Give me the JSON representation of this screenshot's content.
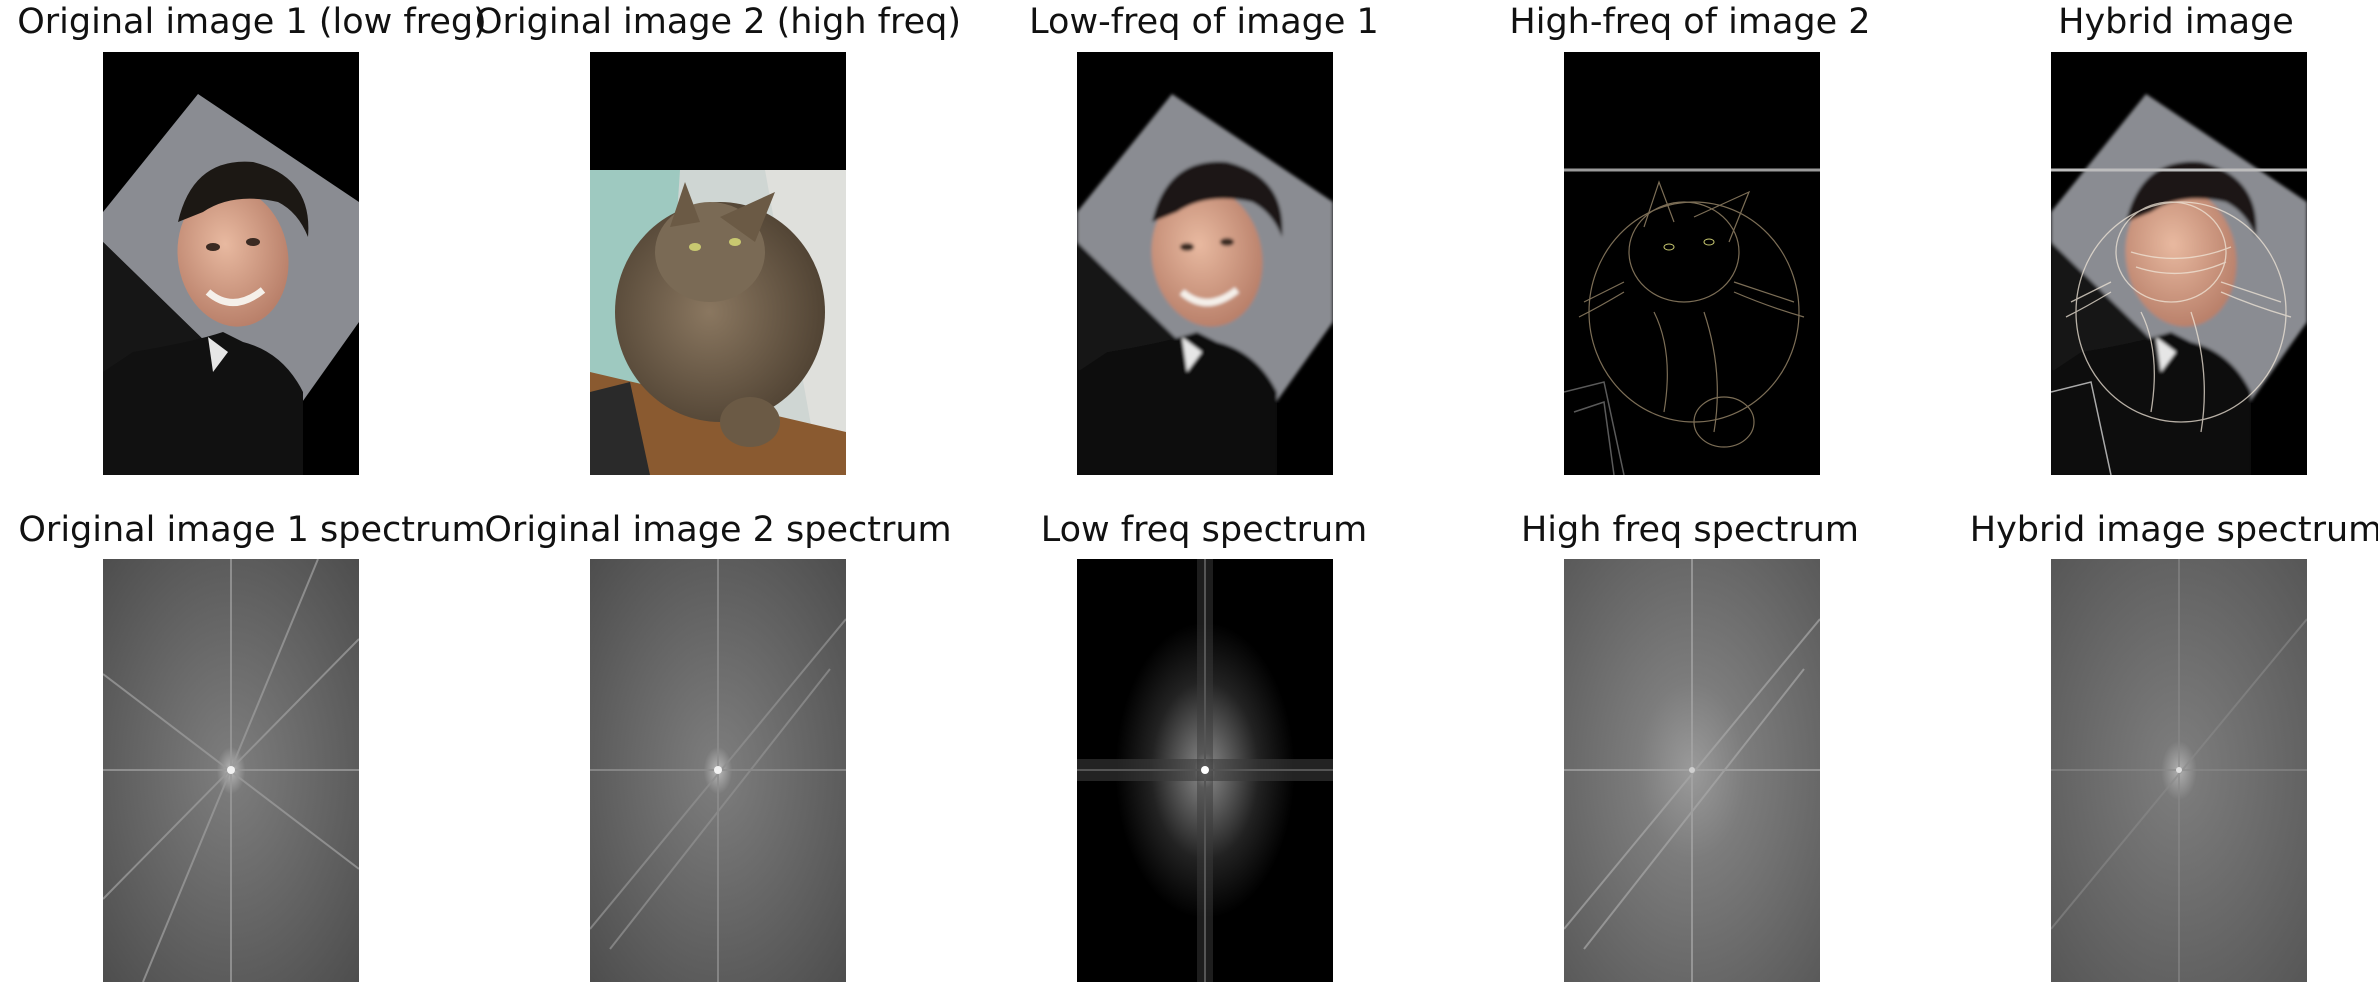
{
  "figure": {
    "rows": [
      {
        "panels": [
          {
            "title": "Original image 1 (low freg)",
            "subject": "portrait-man"
          },
          {
            "title": "Original image 2 (high freq)",
            "subject": "cat"
          },
          {
            "title": "Low-freq of image 1",
            "subject": "portrait-man-blurred"
          },
          {
            "title": "High-freq of image 2",
            "subject": "cat-edges"
          },
          {
            "title": "Hybrid image",
            "subject": "hybrid"
          }
        ]
      },
      {
        "panels": [
          {
            "title": "Original image 1 spectrum",
            "subject": "spectrum"
          },
          {
            "title": "Original image 2 spectrum",
            "subject": "spectrum"
          },
          {
            "title": "Low freq spectrum",
            "subject": "spectrum-low"
          },
          {
            "title": "High freq spectrum",
            "subject": "spectrum-high"
          },
          {
            "title": "Hybrid image spectrum",
            "subject": "spectrum"
          }
        ]
      }
    ]
  },
  "colors": {
    "background": "#ffffff",
    "panel_black": "#000000",
    "tilted_backdrop": "#8a8c92",
    "spectrum_gray": "#5a5a5a",
    "skin": "#d9a58c",
    "hair": "#1c1814",
    "shirt": "#141414",
    "cat_fur": "#6b5a45",
    "wall_teal": "#9ec9c0",
    "floor_wood": "#8a5a30"
  }
}
